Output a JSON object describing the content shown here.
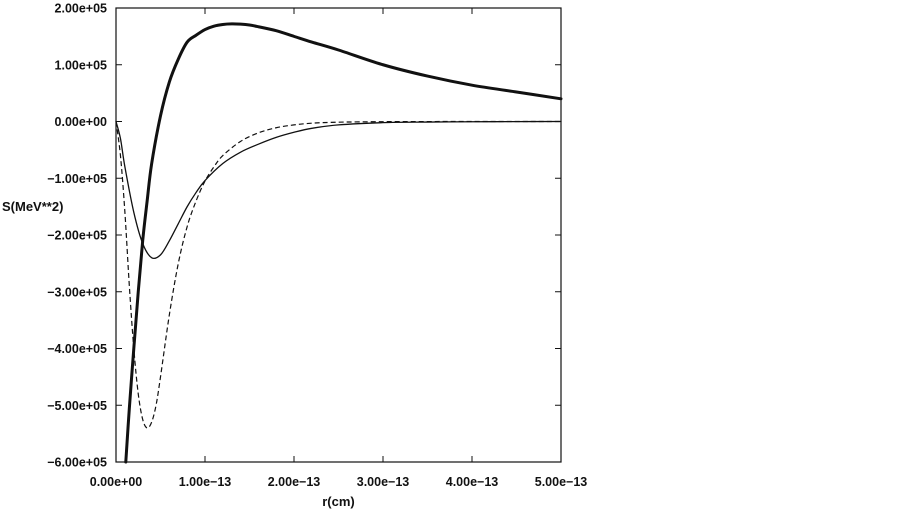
{
  "chart_data": {
    "type": "line",
    "title": "",
    "xlabel": "r(cm)",
    "ylabel": "S(MeV**2)",
    "xlim": [
      0,
      5e-13
    ],
    "ylim": [
      -600000,
      200000
    ],
    "x_ticks": [
      0,
      1e-13,
      2e-13,
      3e-13,
      4e-13,
      5e-13
    ],
    "x_tick_labels": [
      "0.00e+00",
      "1.00e−13",
      "2.00e−13",
      "3.00e−13",
      "4.00e−13",
      "5.00e−13"
    ],
    "y_ticks": [
      200000,
      100000,
      0,
      -100000,
      -200000,
      -300000,
      -400000,
      -500000,
      -600000
    ],
    "y_tick_labels": [
      "2.00e+05",
      "1.00e+05",
      "0.00e+00",
      "−1.00e+05",
      "−2.00e+05",
      "−3.00e+05",
      "−4.00e+05",
      "−5.00e+05",
      "−6.00e+05"
    ],
    "grid": false,
    "legend": "none",
    "series": [
      {
        "style": "thick-solid",
        "color": "#111111",
        "x": [
          1.1e-14,
          1.5e-14,
          2e-14,
          2.5e-14,
          3e-14,
          3.5e-14,
          4e-14,
          5e-14,
          6e-14,
          7e-14,
          8e-14,
          9e-14,
          1e-13,
          1.1e-13,
          1.2e-13,
          1.3e-13,
          1.4e-13,
          1.5e-13,
          1.6e-13,
          1.8e-13,
          2e-13,
          2.2e-13,
          2.5e-13,
          3e-13,
          3.5e-13,
          4e-13,
          4.5e-13,
          5e-13
        ],
        "y": [
          -600000,
          -505000,
          -400000,
          -300000,
          -210000,
          -140000,
          -75000,
          10000,
          70000,
          110000,
          140000,
          152000,
          162000,
          168000,
          171000,
          172000,
          171500,
          170000,
          167000,
          160000,
          150000,
          140000,
          126000,
          100000,
          80000,
          64000,
          52000,
          40000
        ]
      },
      {
        "style": "thin-solid",
        "color": "#111111",
        "x": [
          0,
          5e-15,
          1e-14,
          2e-14,
          3e-14,
          4e-14,
          5e-14,
          6e-14,
          7e-14,
          8e-14,
          9e-14,
          1e-13,
          1.2e-13,
          1.4e-13,
          1.6e-13,
          1.8e-13,
          2e-13,
          2.2e-13,
          2.5e-13,
          3e-13,
          3.5e-13,
          4e-13,
          4.5e-13,
          5e-13
        ],
        "y": [
          0,
          -30000,
          -80000,
          -160000,
          -215000,
          -240000,
          -235000,
          -210000,
          -180000,
          -150000,
          -125000,
          -104000,
          -74000,
          -54000,
          -40000,
          -28000,
          -19000,
          -12000,
          -6000,
          -2000,
          -1000,
          -500,
          -200,
          0
        ]
      },
      {
        "style": "dashed",
        "color": "#111111",
        "x": [
          0,
          5e-15,
          1e-14,
          1.5e-14,
          2e-14,
          2.5e-14,
          3e-14,
          3.5e-14,
          4e-14,
          4.5e-14,
          5e-14,
          6e-14,
          7e-14,
          8e-14,
          9e-14,
          1e-13,
          1.1e-13,
          1.2e-13,
          1.4e-13,
          1.6e-13,
          1.8e-13,
          2e-13,
          2.2e-13,
          2.5e-13,
          3e-13,
          3.5e-13,
          4e-13,
          5e-13
        ],
        "y": [
          0,
          -60000,
          -160000,
          -290000,
          -400000,
          -480000,
          -525000,
          -540000,
          -530000,
          -500000,
          -450000,
          -340000,
          -250000,
          -185000,
          -140000,
          -105000,
          -80000,
          -60000,
          -35000,
          -20000,
          -11000,
          -6000,
          -3000,
          -1200,
          -300,
          -100,
          0,
          0
        ]
      }
    ]
  }
}
